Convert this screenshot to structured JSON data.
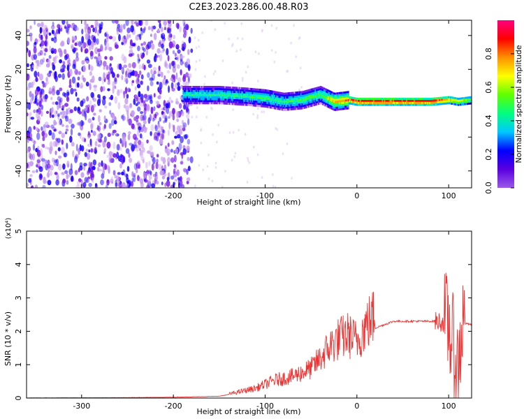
{
  "figure_title": "C2E3.2023.286.00.48.R03",
  "chart_data": [
    {
      "type": "heatmap",
      "title": "",
      "xlabel": "Height of straight line (km)",
      "ylabel": "Frequency (Hz)",
      "xlim": [
        -360,
        125
      ],
      "ylim": [
        -50,
        49
      ],
      "xticks": [
        -300,
        -200,
        -100,
        0,
        100
      ],
      "yticks": [
        -40,
        -20,
        0,
        20,
        40
      ],
      "colorbar": {
        "label": "Normalized spectral amplitude",
        "range": [
          0,
          1
        ],
        "ticks": [
          0.0,
          0.2,
          0.4,
          0.6,
          0.8
        ],
        "colors": [
          "#ffffff",
          "#e8ccf6",
          "#9b59e8",
          "#5a00e0",
          "#0000ff",
          "#00c8ff",
          "#00ff80",
          "#60ff00",
          "#ffff00",
          "#ff9000",
          "#ff0000",
          "#ff0080"
        ]
      },
      "features": [
        {
          "region": "noise",
          "x_range": [
            -360,
            -180
          ],
          "freq_range": [
            -50,
            49
          ],
          "amplitude": "low, scattered"
        },
        {
          "region": "ridge",
          "x": [
            -190,
            -150,
            -120,
            -100,
            -80,
            -60,
            -40,
            -25,
            -10,
            0,
            40,
            80,
            100,
            110,
            125
          ],
          "freq": [
            5,
            5,
            4,
            3,
            1,
            2,
            5,
            1,
            2,
            1,
            1,
            1,
            2,
            1,
            2
          ],
          "amplitude": [
            0.45,
            0.5,
            0.5,
            0.55,
            0.5,
            0.55,
            0.55,
            0.75,
            0.8,
            0.95,
            0.95,
            0.95,
            0.8,
            0.7,
            0.6
          ]
        }
      ]
    },
    {
      "type": "line",
      "title": "",
      "xlabel": "Height of straight line (km)",
      "ylabel": "SNR (10 * v/v)",
      "y_multiplier": "(x10⁴)",
      "xlim": [
        -360,
        125
      ],
      "ylim": [
        0,
        5
      ],
      "xticks": [
        -300,
        -200,
        -100,
        0,
        100
      ],
      "yticks": [
        0,
        1,
        2,
        3,
        4,
        5
      ],
      "color": "#ee3333",
      "x": [
        -360,
        -250,
        -200,
        -150,
        -130,
        -110,
        -100,
        -90,
        -80,
        -70,
        -60,
        -50,
        -40,
        -30,
        -20,
        -10,
        0,
        10,
        20,
        30,
        40,
        60,
        80,
        90,
        100,
        105,
        110,
        115,
        125
      ],
      "y": [
        0.0,
        0.01,
        0.02,
        0.05,
        0.15,
        0.25,
        0.35,
        0.45,
        0.5,
        0.55,
        0.65,
        0.75,
        1.0,
        1.3,
        1.5,
        1.6,
        1.45,
        1.85,
        2.1,
        2.2,
        2.3,
        2.3,
        2.3,
        2.3,
        2.2,
        1.5,
        0.8,
        2.25,
        2.2
      ]
    }
  ]
}
